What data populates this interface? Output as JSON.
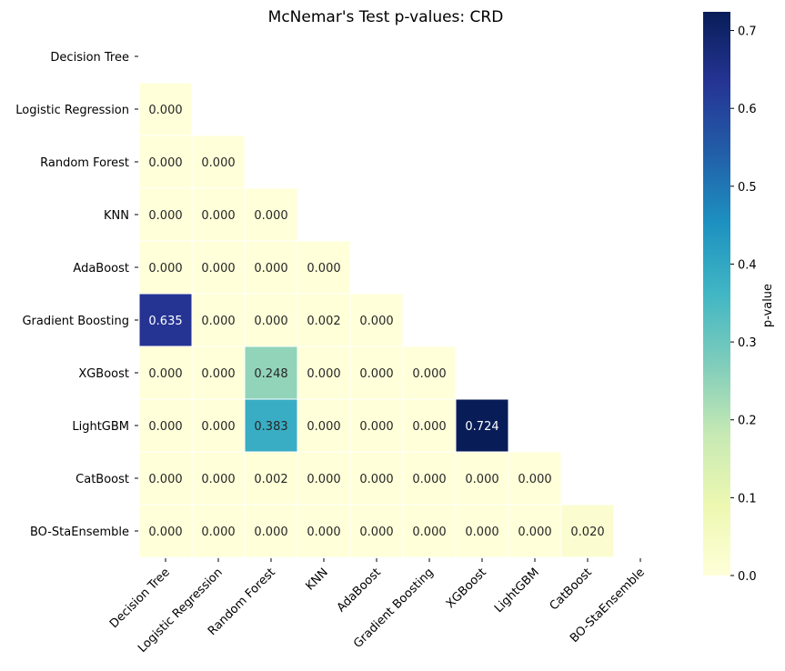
{
  "chart_data": {
    "type": "heatmap",
    "title": "McNemar's Test p-values: CRD",
    "rows": [
      "Decision Tree",
      "Logistic Regression",
      "Random Forest",
      "KNN",
      "AdaBoost",
      "Gradient Boosting",
      "XGBoost",
      "LightGBM",
      "CatBoost",
      "BO-StaEnsemble"
    ],
    "columns": [
      "Decision Tree",
      "Logistic Regression",
      "Random Forest",
      "KNN",
      "AdaBoost",
      "Gradient Boosting",
      "XGBoost",
      "LightGBM",
      "CatBoost",
      "BO-StaEnsemble"
    ],
    "mask": "upper-triangle-including-diagonal",
    "values": [
      [
        null,
        null,
        null,
        null,
        null,
        null,
        null,
        null,
        null,
        null
      ],
      [
        0.0,
        null,
        null,
        null,
        null,
        null,
        null,
        null,
        null,
        null
      ],
      [
        0.0,
        0.0,
        null,
        null,
        null,
        null,
        null,
        null,
        null,
        null
      ],
      [
        0.0,
        0.0,
        0.0,
        null,
        null,
        null,
        null,
        null,
        null,
        null
      ],
      [
        0.0,
        0.0,
        0.0,
        0.0,
        null,
        null,
        null,
        null,
        null,
        null
      ],
      [
        0.635,
        0.0,
        0.0,
        0.002,
        0.0,
        null,
        null,
        null,
        null,
        null
      ],
      [
        0.0,
        0.0,
        0.248,
        0.0,
        0.0,
        0.0,
        null,
        null,
        null,
        null
      ],
      [
        0.0,
        0.0,
        0.383,
        0.0,
        0.0,
        0.0,
        0.724,
        null,
        null,
        null
      ],
      [
        0.0,
        0.0,
        0.002,
        0.0,
        0.0,
        0.0,
        0.0,
        0.0,
        null,
        null
      ],
      [
        0.0,
        0.0,
        0.0,
        0.0,
        0.0,
        0.0,
        0.0,
        0.0,
        0.02,
        null
      ]
    ],
    "value_format": "3 decimals",
    "colorbar": {
      "label": "p-value",
      "range": [
        0,
        0.724
      ],
      "ticks": [
        0.0,
        0.1,
        0.2,
        0.3,
        0.4,
        0.5,
        0.6,
        0.7
      ],
      "tick_labels": [
        "0.0",
        "0.1",
        "0.2",
        "0.3",
        "0.4",
        "0.5",
        "0.6",
        "0.7"
      ],
      "colormap": "YlGnBu",
      "placement": "right"
    },
    "x_tick_rotation": "45 degrees",
    "grid": false
  }
}
